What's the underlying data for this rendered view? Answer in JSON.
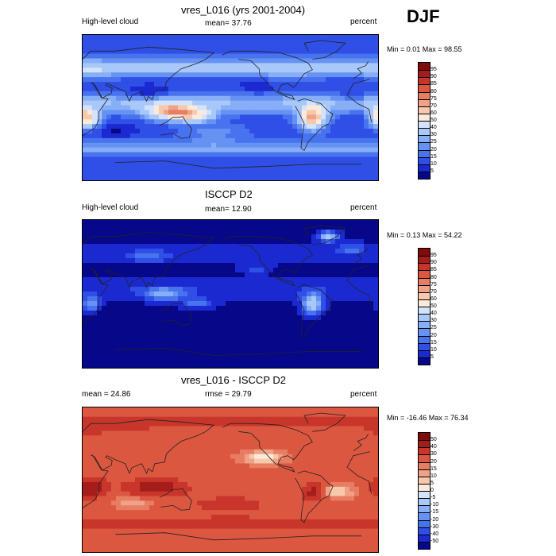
{
  "season": "DJF",
  "panels": [
    {
      "title": "vres_L016 (yrs 2001-2004)",
      "left": "High-level cloud",
      "center": "mean=  37.76",
      "right": "percent",
      "minmax": "Min =   0.01 Max =  98.55",
      "type": "model",
      "levels": [
        "5",
        "10",
        "15",
        "20",
        "25",
        "30",
        "40",
        "50",
        "60",
        "70",
        "75",
        "80",
        "85",
        "90",
        "95"
      ],
      "colors": [
        "#07078a",
        "#1b2ad0",
        "#2f4fe6",
        "#4873ef",
        "#6692f4",
        "#86aff7",
        "#a9c8fa",
        "#d3e3fc",
        "#fbe9da",
        "#f6c9ad",
        "#f0a286",
        "#e77d62",
        "#dc5740",
        "#c8362b",
        "#a51d1b",
        "#7f0b0b"
      ]
    },
    {
      "title": "ISCCP D2",
      "left": "High-level cloud",
      "center": "mean=  12.90",
      "right": "percent",
      "minmax": "Min =   0.13 Max =  54.22",
      "type": "obs",
      "levels": [
        "5",
        "10",
        "15",
        "20",
        "25",
        "30",
        "40",
        "50",
        "60",
        "70",
        "75",
        "80",
        "85",
        "90",
        "95"
      ],
      "colors": [
        "#07078a",
        "#1b2ad0",
        "#2f4fe6",
        "#4873ef",
        "#6692f4",
        "#86aff7",
        "#a9c8fa",
        "#d3e3fc",
        "#fbe9da",
        "#f6c9ad",
        "#f0a286",
        "#e77d62",
        "#dc5740",
        "#c8362b",
        "#a51d1b",
        "#7f0b0b"
      ]
    },
    {
      "title": "vres_L016 - ISCCP D2",
      "left": "mean =  24.86",
      "center": "rmse =  29.79",
      "right": "percent",
      "minmax": "Min = -16.46 Max =  76.34",
      "type": "diff",
      "levels": [
        "-50",
        "-40",
        "-30",
        "-20",
        "-15",
        "-10",
        "-5",
        "0",
        "5",
        "10",
        "15",
        "20",
        "30",
        "40",
        "50"
      ],
      "colors": [
        "#07078a",
        "#1b2ad0",
        "#2f4fe6",
        "#4873ef",
        "#6692f4",
        "#86aff7",
        "#a9c8fa",
        "#d3e3fc",
        "#fbe9da",
        "#f6c9ad",
        "#f0a286",
        "#e77d62",
        "#dc5740",
        "#c8362b",
        "#a51d1b",
        "#7f0b0b"
      ]
    }
  ],
  "chart_data": [
    {
      "type": "heatmap",
      "title": "vres_L016 (yrs 2001-2004)",
      "variable": "High-level cloud",
      "units": "percent",
      "mean": 37.76,
      "min": 0.01,
      "max": 98.55,
      "contour_levels": [
        5,
        10,
        15,
        20,
        25,
        30,
        40,
        50,
        60,
        70,
        75,
        80,
        85,
        90,
        95
      ]
    },
    {
      "type": "heatmap",
      "title": "ISCCP D2",
      "variable": "High-level cloud",
      "units": "percent",
      "mean": 12.9,
      "min": 0.13,
      "max": 54.22,
      "contour_levels": [
        5,
        10,
        15,
        20,
        25,
        30,
        40,
        50,
        60,
        70,
        75,
        80,
        85,
        90,
        95
      ]
    },
    {
      "type": "heatmap",
      "title": "vres_L016 - ISCCP D2",
      "units": "percent",
      "mean": 24.86,
      "rmse": 29.79,
      "min": -16.46,
      "max": 76.34,
      "contour_levels": [
        -50,
        -40,
        -30,
        -20,
        -15,
        -10,
        -5,
        0,
        5,
        10,
        15,
        20,
        30,
        40,
        50
      ]
    }
  ]
}
